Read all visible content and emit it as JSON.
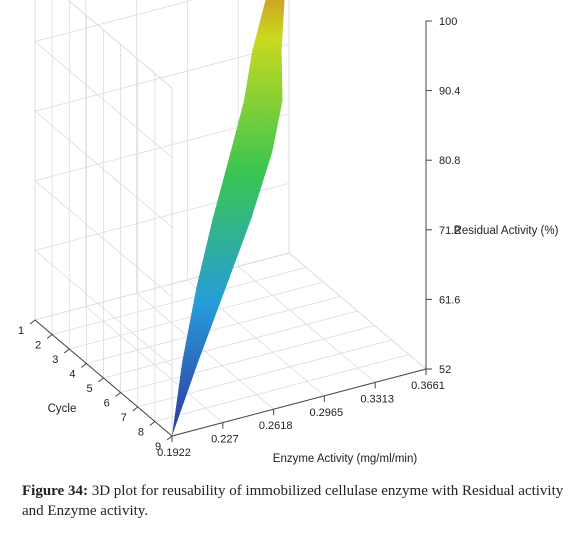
{
  "chart_data": {
    "type": "surface",
    "x_axis": {
      "label": "Enzyme Activity (mg/ml/min)",
      "ticks": [
        "0.1922",
        "0.227",
        "0.2618",
        "0.2965",
        "0.3313",
        "0.3661"
      ],
      "range": [
        0.1922,
        0.3661
      ]
    },
    "y_axis": {
      "label": "Cycle",
      "ticks": [
        "1",
        "2",
        "3",
        "4",
        "5",
        "6",
        "7",
        "8",
        "9"
      ],
      "range": [
        1,
        9
      ]
    },
    "z_axis": {
      "label": "Residual Activity (%)",
      "ticks": [
        "52",
        "61.6",
        "71.2",
        "80.8",
        "90.4",
        "100"
      ],
      "range": [
        52,
        100
      ]
    },
    "points": [
      {
        "cycle": 1,
        "enzyme_activity": 0.3661,
        "residual_activity": 100
      },
      {
        "cycle": 2,
        "enzyme_activity": 0.345,
        "residual_activity": 92
      },
      {
        "cycle": 3,
        "enzyme_activity": 0.325,
        "residual_activity": 86
      },
      {
        "cycle": 4,
        "enzyme_activity": 0.31,
        "residual_activity": 82
      },
      {
        "cycle": 5,
        "enzyme_activity": 0.29,
        "residual_activity": 78
      },
      {
        "cycle": 6,
        "enzyme_activity": 0.265,
        "residual_activity": 72
      },
      {
        "cycle": 7,
        "enzyme_activity": 0.24,
        "residual_activity": 66
      },
      {
        "cycle": 8,
        "enzyme_activity": 0.215,
        "residual_activity": 59
      },
      {
        "cycle": 9,
        "enzyme_activity": 0.1922,
        "residual_activity": 52
      }
    ],
    "colormap": [
      "#2b2f9a",
      "#1f9ad8",
      "#35c44a",
      "#c8d817",
      "#d81d1d"
    ],
    "grid": true
  },
  "caption": {
    "label": "Figure 34:",
    "text": " 3D plot for reusability of immobilized cellulase enzyme with Residual activity and Enzyme activity."
  }
}
